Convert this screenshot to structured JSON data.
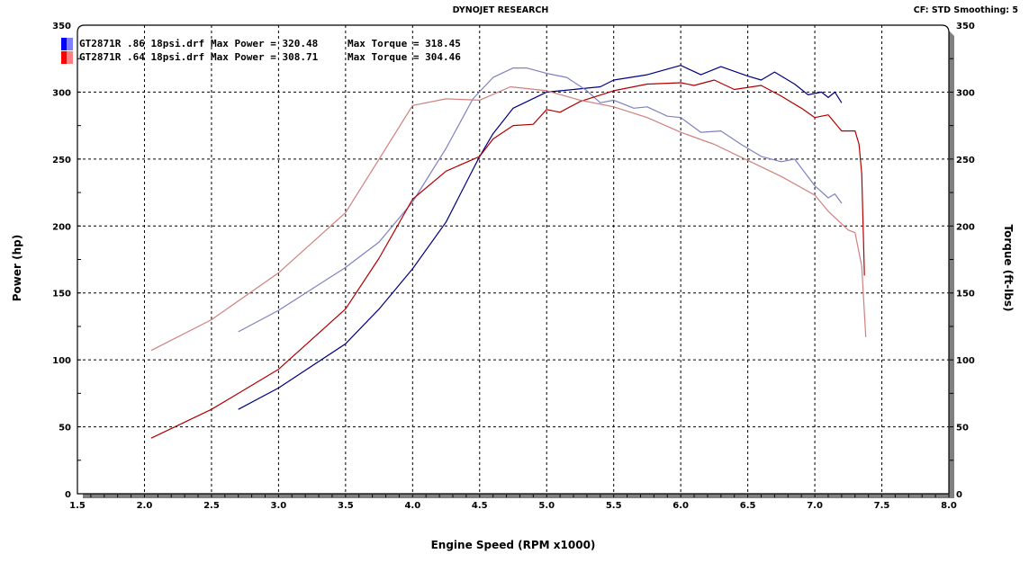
{
  "header": {
    "title": "DYNOJET RESEARCH",
    "settings": "CF: STD  Smoothing: 5"
  },
  "legend": [
    {
      "file": "GT2871R .86 18psi.drf",
      "max_power": "Max Power = 320.48",
      "max_torque": "Max Torque = 318.45",
      "color": "#0000ff",
      "light_color": "#8080ff"
    },
    {
      "file": "GT2871R .64 18psi.drf",
      "max_power": "Max Power = 308.71",
      "max_torque": "Max Torque = 304.46",
      "color": "#ff0000",
      "light_color": "#ff8080"
    }
  ],
  "chart_data": {
    "type": "line",
    "title": "DYNOJET RESEARCH",
    "xlabel": "Engine Speed (RPM x1000)",
    "ylabel": "Power (hp)",
    "y2label": "Torque (ft-lbs)",
    "xlim": [
      1.5,
      8.0
    ],
    "ylim": [
      0,
      350
    ],
    "y2lim": [
      0,
      350
    ],
    "xticks": [
      "1.5",
      "2.0",
      "2.5",
      "3.0",
      "3.5",
      "4.0",
      "4.5",
      "5.0",
      "5.5",
      "6.0",
      "6.5",
      "7.0",
      "7.5",
      "8.0"
    ],
    "yticks": [
      "0",
      "50",
      "100",
      "150",
      "200",
      "250",
      "300",
      "350"
    ],
    "grid": true,
    "legend_position": "top-left",
    "series": [
      {
        "name": "GT2871R .86 18psi.drf",
        "measure": "power",
        "axis": "left",
        "color": "#000080",
        "x": [
          2.7,
          3.0,
          3.5,
          3.75,
          4.0,
          4.25,
          4.5,
          4.6,
          4.75,
          5.0,
          5.2,
          5.4,
          5.5,
          5.75,
          6.0,
          6.15,
          6.3,
          6.5,
          6.6,
          6.7,
          6.85,
          6.95,
          7.05,
          7.1,
          7.15,
          7.2
        ],
        "y": [
          63,
          79,
          112,
          138,
          168,
          203,
          252,
          269,
          288,
          300,
          302,
          304,
          309,
          313,
          320,
          313,
          319,
          312,
          309,
          315,
          306,
          298,
          300,
          296,
          300,
          292
        ]
      },
      {
        "name": "GT2871R .86 18psi.drf",
        "measure": "torque",
        "axis": "right",
        "color": "#8080c0",
        "x": [
          2.7,
          3.0,
          3.5,
          3.75,
          4.0,
          4.25,
          4.45,
          4.6,
          4.75,
          4.85,
          5.0,
          5.15,
          5.3,
          5.4,
          5.5,
          5.65,
          5.75,
          5.9,
          6.0,
          6.15,
          6.3,
          6.45,
          6.6,
          6.75,
          6.85,
          7.0,
          7.1,
          7.15,
          7.2
        ],
        "y": [
          121,
          137,
          169,
          188,
          218,
          258,
          295,
          311,
          318,
          318,
          314,
          311,
          301,
          292,
          294,
          288,
          289,
          282,
          281,
          270,
          271,
          261,
          252,
          248,
          250,
          230,
          221,
          224,
          217
        ]
      },
      {
        "name": "GT2871R .64 18psi.drf",
        "measure": "power",
        "axis": "left",
        "color": "#b00000",
        "x": [
          2.05,
          2.5,
          3.0,
          3.5,
          3.75,
          4.0,
          4.25,
          4.5,
          4.6,
          4.75,
          4.9,
          5.0,
          5.1,
          5.25,
          5.5,
          5.75,
          6.0,
          6.1,
          6.25,
          6.4,
          6.6,
          6.75,
          6.9,
          7.0,
          7.1,
          7.2,
          7.3,
          7.33,
          7.35,
          7.37
        ],
        "y": [
          41.5,
          63,
          93,
          138,
          176,
          220,
          241,
          252,
          265,
          275,
          276,
          287,
          285,
          293,
          301,
          306,
          307,
          305,
          309,
          302,
          305,
          297,
          288,
          281,
          283,
          271,
          271,
          261,
          239,
          163
        ]
      },
      {
        "name": "GT2871R .64 18psi.drf",
        "measure": "torque",
        "axis": "right",
        "color": "#d08080",
        "x": [
          2.05,
          2.5,
          3.0,
          3.5,
          3.75,
          4.0,
          4.25,
          4.5,
          4.73,
          5.0,
          5.25,
          5.5,
          5.75,
          6.0,
          6.25,
          6.5,
          6.75,
          7.0,
          7.1,
          7.25,
          7.3,
          7.35,
          7.38
        ],
        "y": [
          107,
          130,
          165,
          210,
          250,
          290,
          295,
          294,
          304,
          301,
          294,
          289,
          281,
          270,
          261,
          249,
          237,
          223,
          211,
          197,
          195,
          170,
          117
        ]
      }
    ]
  }
}
